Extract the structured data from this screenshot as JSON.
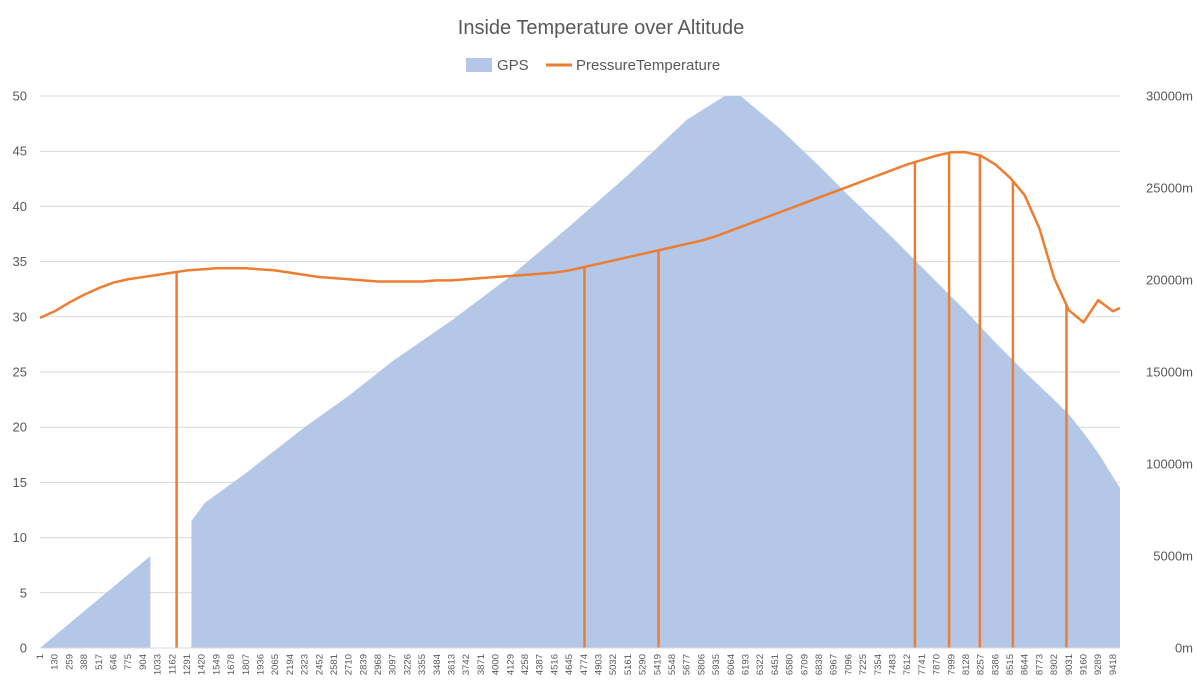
{
  "chart_data": {
    "type": "area+line",
    "title": "Inside Temperature over Altitude",
    "legend": {
      "position": "top",
      "entries": [
        {
          "name": "GPS",
          "type": "area",
          "color": "#b4c7e7"
        },
        {
          "name": "PressureTemperature",
          "type": "line",
          "color": "#ed7d31"
        }
      ]
    },
    "x_axis": {
      "min": 1,
      "max": 9480,
      "tick_step": 129,
      "tick_labels": [
        "1",
        "130",
        "259",
        "388",
        "517",
        "646",
        "775",
        "904",
        "1033",
        "1162",
        "1291",
        "1420",
        "1549",
        "1678",
        "1807",
        "1936",
        "2065",
        "2194",
        "2323",
        "2452",
        "2581",
        "2710",
        "2839",
        "2968",
        "3097",
        "3226",
        "3355",
        "3484",
        "3613",
        "3742",
        "3871",
        "4000",
        "4129",
        "4258",
        "4387",
        "4516",
        "4645",
        "4774",
        "4903",
        "5032",
        "5161",
        "5290",
        "5419",
        "5548",
        "5677",
        "5806",
        "5935",
        "6064",
        "6193",
        "6322",
        "6451",
        "6580",
        "6709",
        "6838",
        "6967",
        "7096",
        "7225",
        "7354",
        "7483",
        "7612",
        "7741",
        "7870",
        "7999",
        "8128",
        "8257",
        "8386",
        "8515",
        "8644",
        "8773",
        "8902",
        "9031",
        "9160",
        "9289",
        "9418"
      ]
    },
    "y_axis_left": {
      "min": 0,
      "max": 50,
      "step": 5,
      "tick_labels": [
        "0",
        "5",
        "10",
        "15",
        "20",
        "25",
        "30",
        "35",
        "40",
        "45",
        "50"
      ]
    },
    "y_axis_right": {
      "min": 0,
      "max": 30000,
      "step": 5000,
      "tick_labels": [
        "0m",
        "5000m",
        "10000m",
        "15000m",
        "20000m",
        "25000m",
        "30000m"
      ]
    },
    "grid": true,
    "series": [
      {
        "name": "GPS",
        "axis": "right",
        "segments": [
          [
            [
              1,
              0
            ],
            [
              970,
              5000
            ]
          ],
          [
            [
              1330,
              6900
            ],
            [
              1450,
              7900
            ],
            [
              1807,
              9500
            ],
            [
              2323,
              12000
            ],
            [
              2710,
              13700
            ],
            [
              3097,
              15600
            ],
            [
              3613,
              17800
            ],
            [
              4129,
              20200
            ],
            [
              4645,
              22900
            ],
            [
              5161,
              25700
            ],
            [
              5677,
              28700
            ],
            [
              6010,
              30000
            ],
            [
              6150,
              30000
            ],
            [
              6500,
              28200
            ],
            [
              6838,
              26200
            ],
            [
              7096,
              24600
            ],
            [
              7483,
              22300
            ],
            [
              7870,
              19900
            ],
            [
              8128,
              18300
            ],
            [
              8386,
              16600
            ],
            [
              8644,
              15000
            ],
            [
              8900,
              13500
            ],
            [
              9031,
              12700
            ],
            [
              9160,
              11700
            ],
            [
              9289,
              10600
            ],
            [
              9418,
              9300
            ],
            [
              9480,
              8700
            ]
          ]
        ]
      },
      {
        "name": "PressureTemperature",
        "axis": "left",
        "points": [
          [
            1,
            29.9
          ],
          [
            130,
            30.5
          ],
          [
            259,
            31.3
          ],
          [
            388,
            32.0
          ],
          [
            517,
            32.6
          ],
          [
            646,
            33.1
          ],
          [
            775,
            33.4
          ],
          [
            904,
            33.6
          ],
          [
            1033,
            33.8
          ],
          [
            1162,
            34.0
          ],
          [
            1291,
            34.2
          ],
          [
            1420,
            34.3
          ],
          [
            1549,
            34.4
          ],
          [
            1678,
            34.4
          ],
          [
            1807,
            34.4
          ],
          [
            1936,
            34.3
          ],
          [
            2065,
            34.2
          ],
          [
            2194,
            34.0
          ],
          [
            2323,
            33.8
          ],
          [
            2452,
            33.6
          ],
          [
            2581,
            33.5
          ],
          [
            2710,
            33.4
          ],
          [
            2839,
            33.3
          ],
          [
            2968,
            33.2
          ],
          [
            3097,
            33.2
          ],
          [
            3226,
            33.2
          ],
          [
            3355,
            33.2
          ],
          [
            3484,
            33.3
          ],
          [
            3613,
            33.3
          ],
          [
            3742,
            33.4
          ],
          [
            3871,
            33.5
          ],
          [
            4000,
            33.6
          ],
          [
            4129,
            33.7
          ],
          [
            4258,
            33.8
          ],
          [
            4387,
            33.9
          ],
          [
            4516,
            34.0
          ],
          [
            4645,
            34.2
          ],
          [
            4774,
            34.5
          ],
          [
            4903,
            34.8
          ],
          [
            5032,
            35.1
          ],
          [
            5161,
            35.4
          ],
          [
            5290,
            35.7
          ],
          [
            5419,
            36.0
          ],
          [
            5548,
            36.3
          ],
          [
            5677,
            36.6
          ],
          [
            5806,
            36.9
          ],
          [
            5935,
            37.3
          ],
          [
            6064,
            37.8
          ],
          [
            6193,
            38.3
          ],
          [
            6322,
            38.8
          ],
          [
            6451,
            39.3
          ],
          [
            6580,
            39.8
          ],
          [
            6709,
            40.3
          ],
          [
            6838,
            40.8
          ],
          [
            6967,
            41.3
          ],
          [
            7096,
            41.8
          ],
          [
            7225,
            42.3
          ],
          [
            7354,
            42.8
          ],
          [
            7483,
            43.3
          ],
          [
            7612,
            43.8
          ],
          [
            7741,
            44.2
          ],
          [
            7870,
            44.6
          ],
          [
            7999,
            44.9
          ],
          [
            8128,
            44.9
          ],
          [
            8257,
            44.6
          ],
          [
            8386,
            43.8
          ],
          [
            8515,
            42.6
          ],
          [
            8644,
            41.0
          ],
          [
            8773,
            38.0
          ],
          [
            8902,
            33.5
          ],
          [
            9031,
            30.6
          ],
          [
            9160,
            29.5
          ],
          [
            9289,
            31.5
          ],
          [
            9418,
            30.5
          ],
          [
            9480,
            30.8
          ]
        ],
        "drop_lines_at_x": [
          1200,
          4780,
          5430,
          7680,
          7980,
          8250,
          8540,
          9010
        ]
      }
    ]
  }
}
